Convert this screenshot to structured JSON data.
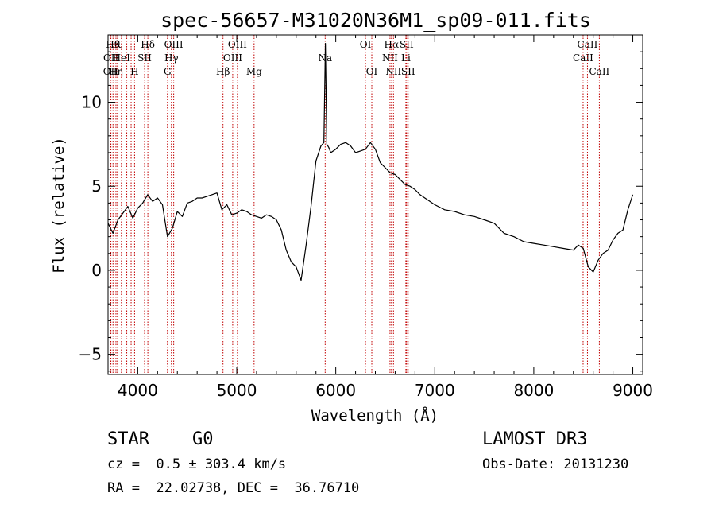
{
  "chart_data": {
    "type": "line",
    "title": "spec-56657-M31020N36M1_sp09-011.fits",
    "xlabel": "Wavelength (Å)",
    "ylabel": "Flux (relative)",
    "xlim": [
      3700,
      9100
    ],
    "ylim": [
      -6.2,
      14
    ],
    "xticks": [
      4000,
      5000,
      6000,
      7000,
      8000,
      9000
    ],
    "yticks": [
      -5,
      0,
      5,
      10
    ],
    "xtick_labels": [
      "4000",
      "5000",
      "6000",
      "7000",
      "8000",
      "9000"
    ],
    "ytick_labels": [
      "−5",
      "0",
      "5",
      "10"
    ],
    "grid": false,
    "line_color": "#000000",
    "marker_color": "#c00000",
    "series": [
      {
        "x": [
          3700,
          3750,
          3800,
          3850,
          3900,
          3950,
          4000,
          4050,
          4100,
          4150,
          4200,
          4250,
          4300,
          4350,
          4400,
          4450,
          4500,
          4550,
          4600,
          4650,
          4700,
          4750,
          4800,
          4850,
          4900,
          4950,
          5000,
          5050,
          5100,
          5150,
          5200,
          5250,
          5300,
          5350,
          5400,
          5450,
          5500,
          5550,
          5600,
          5650,
          5700,
          5750,
          5800,
          5850,
          5880,
          5895,
          5910,
          5930,
          5950,
          6000,
          6050,
          6100,
          6150,
          6200,
          6250,
          6300,
          6350,
          6400,
          6450,
          6500,
          6550,
          6600,
          6650,
          6700,
          6750,
          6800,
          6850,
          6900,
          6950,
          7000,
          7100,
          7200,
          7300,
          7400,
          7500,
          7600,
          7700,
          7800,
          7900,
          8000,
          8100,
          8200,
          8300,
          8400,
          8450,
          8500,
          8550,
          8600,
          8650,
          8700,
          8750,
          8800,
          8850,
          8900,
          8950,
          9000
        ],
        "y": [
          2.8,
          2.2,
          3.0,
          3.4,
          3.8,
          3.1,
          3.7,
          4.0,
          4.5,
          4.1,
          4.3,
          3.9,
          2.0,
          2.5,
          3.5,
          3.2,
          4.0,
          4.1,
          4.3,
          4.3,
          4.4,
          4.5,
          4.6,
          3.6,
          3.9,
          3.3,
          3.4,
          3.6,
          3.5,
          3.3,
          3.2,
          3.1,
          3.3,
          3.2,
          3.0,
          2.4,
          1.2,
          0.5,
          0.2,
          -0.6,
          1.5,
          3.8,
          6.5,
          7.4,
          7.6,
          13.5,
          7.5,
          7.3,
          7.0,
          7.2,
          7.5,
          7.6,
          7.4,
          7.0,
          7.1,
          7.2,
          7.6,
          7.2,
          6.4,
          6.1,
          5.8,
          5.7,
          5.4,
          5.1,
          5.0,
          4.8,
          4.5,
          4.3,
          4.1,
          3.9,
          3.6,
          3.5,
          3.3,
          3.2,
          3.0,
          2.8,
          2.2,
          2.0,
          1.7,
          1.6,
          1.5,
          1.4,
          1.3,
          1.2,
          1.5,
          1.3,
          0.2,
          -0.1,
          0.6,
          1.0,
          1.2,
          1.8,
          2.2,
          2.4,
          3.6,
          4.5
        ]
      }
    ],
    "lines": [
      {
        "x": 3750,
        "row": 0,
        "label": "Hθ"
      },
      {
        "x": 3795,
        "row": 0,
        "label": "K"
      },
      {
        "x": 3729,
        "row": 1,
        "label": "OII"
      },
      {
        "x": 3835,
        "row": 1,
        "label": "HeI"
      },
      {
        "x": 3727,
        "row": 2,
        "label": "OII"
      },
      {
        "x": 3780,
        "row": 2,
        "label": "Hη"
      },
      {
        "x": 3889,
        "row": 2,
        "label": ""
      },
      {
        "x": 3933,
        "row": 2,
        "label": ""
      },
      {
        "x": 3968,
        "row": 2,
        "label": "H"
      },
      {
        "x": 4069,
        "row": 1,
        "label": "SII"
      },
      {
        "x": 4102,
        "row": 0,
        "label": "Hδ"
      },
      {
        "x": 4300,
        "row": 2,
        "label": "G"
      },
      {
        "x": 4340,
        "row": 1,
        "label": "Hγ"
      },
      {
        "x": 4363,
        "row": 0,
        "label": "OIII"
      },
      {
        "x": 4861,
        "row": 2,
        "label": "Hβ"
      },
      {
        "x": 4959,
        "row": 1,
        "label": "OIII"
      },
      {
        "x": 5007,
        "row": 0,
        "label": "OIII"
      },
      {
        "x": 5175,
        "row": 2,
        "label": "Mg"
      },
      {
        "x": 5893,
        "row": 1,
        "label": "Na"
      },
      {
        "x": 6300,
        "row": 0,
        "label": "OI"
      },
      {
        "x": 6364,
        "row": 2,
        "label": "OI"
      },
      {
        "x": 6548,
        "row": 1,
        "label": "NII"
      },
      {
        "x": 6563,
        "row": 0,
        "label": "Hα"
      },
      {
        "x": 6583,
        "row": 2,
        "label": "NII"
      },
      {
        "x": 6708,
        "row": 1,
        "label": "Li"
      },
      {
        "x": 6716,
        "row": 0,
        "label": "SII"
      },
      {
        "x": 6731,
        "row": 2,
        "label": "SII"
      },
      {
        "x": 8498,
        "row": 1,
        "label": "CaII"
      },
      {
        "x": 8542,
        "row": 0,
        "label": "CaII"
      },
      {
        "x": 8662,
        "row": 2,
        "label": "CaII"
      }
    ]
  },
  "info": {
    "object_class": "STAR",
    "subclass": "G0",
    "survey": "LAMOST DR3",
    "redshift": "cz =  0.5 ± 303.4 km/s",
    "obs_date": "Obs-Date: 20131230",
    "coords": "RA =  22.02738, DEC =  36.76710"
  }
}
